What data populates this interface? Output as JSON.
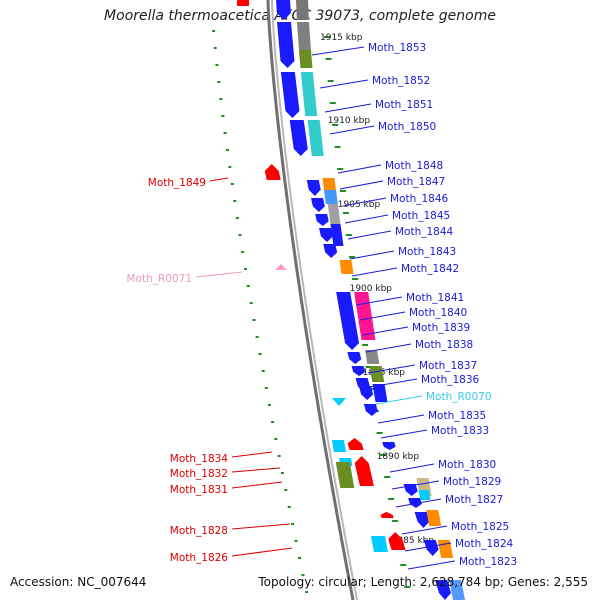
{
  "title": "Moorella thermoacetica ATCC 39073, complete genome",
  "footer": {
    "accession": "Accession: NC_007644",
    "topology": "Topology: circular; Length: 2,628,784 bp; Genes: 2,555"
  },
  "colors": {
    "forward_gene": "#1a1aff",
    "reverse_gene": "#ff0000",
    "rrna_trna_forward": "#00ccff",
    "rrna_trna_reverse": "#ff99cc",
    "backbone": "#8c8c8c",
    "tick": "#228b22",
    "cog_cyan": "#33cccc",
    "cog_olive": "#6b8e23",
    "cog_orange": "#ff8c00",
    "cog_magenta": "#ff1493",
    "cog_gray": "#a0a0a0",
    "cog_tan": "#c8b88a",
    "cog_lightblue": "#66ccff"
  },
  "scale_labels": [
    "1915 kbp",
    "1910 kbp",
    "1905 kbp",
    "1900 kbp",
    "1895 kbp",
    "1890 kbp",
    "1885 kbp"
  ],
  "right_labels": [
    "Moth_1853",
    "Moth_1852",
    "Moth_1851",
    "Moth_1850",
    "Moth_1848",
    "Moth_1847",
    "Moth_1846",
    "Moth_1845",
    "Moth_1844",
    "Moth_1843",
    "Moth_1842",
    "Moth_1841",
    "Moth_1840",
    "Moth_1839",
    "Moth_1838",
    "Moth_1837",
    "Moth_1836",
    "Moth_R0070",
    "Moth_1835",
    "Moth_1833",
    "Moth_1830",
    "Moth_1829",
    "Moth_1827",
    "Moth_1825",
    "Moth_1824",
    "Moth_1823"
  ],
  "left_labels": [
    "Moth_1849",
    "Moth_R0071",
    "Moth_1834",
    "Moth_1832",
    "Moth_1831",
    "Moth_1828",
    "Moth_1826"
  ]
}
